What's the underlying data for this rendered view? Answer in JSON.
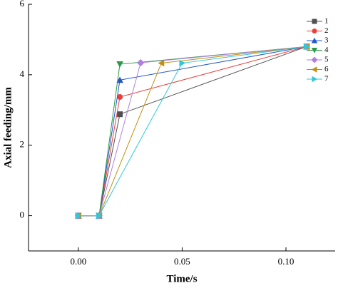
{
  "chart_data": {
    "type": "line",
    "xlabel": "Time/s",
    "ylabel": "Axial feeding/mm",
    "xlim": [
      -0.024,
      0.1237
    ],
    "ylim": [
      -1.0,
      6
    ],
    "xticks": [
      {
        "value": 0,
        "label": "0.00"
      },
      {
        "value": 0.05,
        "label": "0.05"
      },
      {
        "value": 0.1,
        "label": "0.10"
      }
    ],
    "yticks": [
      0,
      2,
      4,
      6
    ],
    "legend": "upper right",
    "series": [
      {
        "name": "1",
        "color": "#505050",
        "marker": "square",
        "x": [
          0,
          0.01,
          0.02,
          0.11
        ],
        "values": [
          0,
          0,
          2.88,
          4.8
        ]
      },
      {
        "name": "2",
        "color": "#e8413c",
        "marker": "circle",
        "x": [
          0,
          0.01,
          0.02,
          0.11
        ],
        "values": [
          0,
          0,
          3.37,
          4.8
        ]
      },
      {
        "name": "3",
        "color": "#2255cc",
        "marker": "triangle-up",
        "x": [
          0,
          0.01,
          0.02,
          0.11
        ],
        "values": [
          0,
          0,
          3.85,
          4.8
        ]
      },
      {
        "name": "4",
        "color": "#2a9a4a",
        "marker": "triangle-down",
        "x": [
          0,
          0.01,
          0.02,
          0.11
        ],
        "values": [
          0,
          0,
          4.3,
          4.8
        ]
      },
      {
        "name": "5",
        "color": "#b080e0",
        "marker": "diamond",
        "x": [
          0,
          0.01,
          0.03,
          0.11
        ],
        "values": [
          0,
          0,
          4.34,
          4.8
        ]
      },
      {
        "name": "6",
        "color": "#c09010",
        "marker": "triangle-left",
        "x": [
          0,
          0.01,
          0.04,
          0.11
        ],
        "values": [
          0,
          0,
          4.33,
          4.8
        ]
      },
      {
        "name": "7",
        "color": "#30c8d8",
        "marker": "triangle-right",
        "x": [
          0,
          0.01,
          0.05,
          0.11
        ],
        "values": [
          0,
          0,
          4.33,
          4.8
        ]
      }
    ]
  }
}
